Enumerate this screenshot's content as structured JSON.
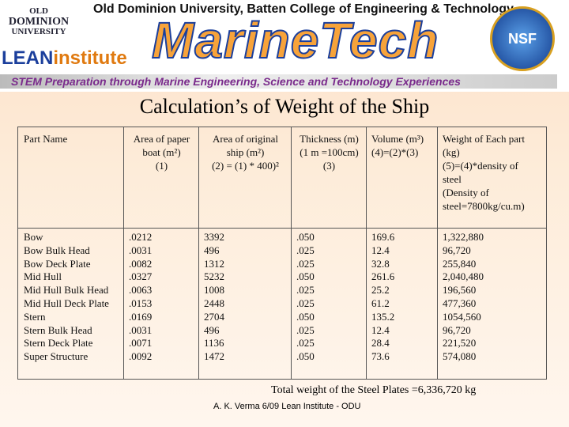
{
  "header": {
    "university_line": "Old Dominion University, Batten College of Engineering & Technology",
    "odu_logo": [
      "OLD",
      "DOMINION",
      "UNIVERSITY"
    ],
    "lean_logo": {
      "lean": "LEAN",
      "institute": "institute"
    },
    "program": "MarineTech",
    "nsf": "NSF",
    "tagline": "STEM Preparation through Marine Engineering, Science and Technology Experiences"
  },
  "title": "Calculation’s of Weight of the Ship",
  "table": {
    "header": [
      [
        "Part Name"
      ],
      [
        "Area of paper",
        "boat (m²)",
        "(1)"
      ],
      [
        "Area of original",
        "ship (m²)",
        "(2) = (1) * 400)²"
      ],
      [
        "Thickness (m)",
        "(1 m =100cm)",
        "(3)"
      ],
      [
        "Volume (m³)",
        "(4)=(2)*(3)"
      ],
      [
        "Weight of Each part",
        "(kg)",
        "(5)=(4)*density of",
        "steel",
        "(Density of",
        "steel=7800kg/cu.m)"
      ]
    ],
    "rows": [
      [
        "Bow",
        ".0212",
        "3392",
        ".050",
        "169.6",
        "1,322,880"
      ],
      [
        "Bow Bulk Head",
        ".0031",
        "496",
        ".025",
        "12.4",
        "96,720"
      ],
      [
        "Bow Deck Plate",
        ".0082",
        "1312",
        ".025",
        "32.8",
        "255,840"
      ],
      [
        "Mid Hull",
        ".0327",
        "5232",
        ".050",
        "261.6",
        "2,040,480"
      ],
      [
        "Mid Hull Bulk Head",
        ".0063",
        "1008",
        ".025",
        "25.2",
        "196,560"
      ],
      [
        "Mid Hull Deck Plate",
        ".0153",
        "2448",
        ".025",
        "61.2",
        "477,360"
      ],
      [
        "Stern",
        ".0169",
        "2704",
        ".050",
        "135.2",
        "1054,560"
      ],
      [
        "Stern Bulk Head",
        ".0031",
        "496",
        ".025",
        "12.4",
        "96,720"
      ],
      [
        "Stern Deck Plate",
        ".0071",
        "1136",
        ".025",
        "28.4",
        "221,520"
      ],
      [
        "Super Structure",
        ".0092",
        "1472",
        ".050",
        "73.6",
        "574,080"
      ]
    ]
  },
  "total": "Total weight of the Steel Plates =6,336,720 kg",
  "credit": "A. K. Verma 6/09 Lean Institute - ODU"
}
